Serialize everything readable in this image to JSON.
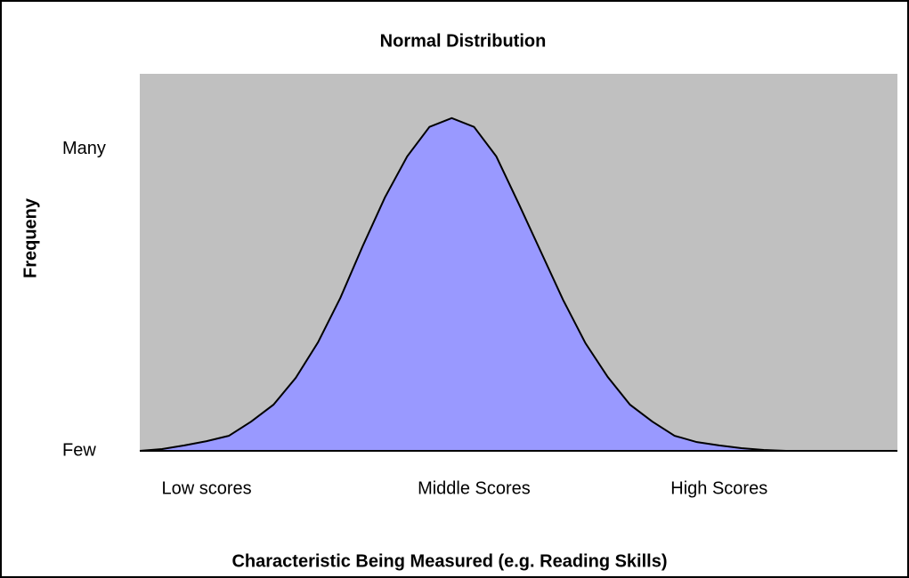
{
  "chart_data": {
    "type": "area",
    "title": "Normal Distribution",
    "x_label": "Characteristic Being Measured (e.g. Reading Skills)",
    "y_label": "Frequeny",
    "categories": [
      null,
      null,
      null,
      "Low scores",
      null,
      null,
      null,
      null,
      null,
      null,
      null,
      null,
      null,
      null,
      null,
      "Middle Scores",
      null,
      null,
      null,
      null,
      null,
      null,
      null,
      null,
      null,
      null,
      "High Scores",
      null,
      null,
      null,
      null,
      null,
      null,
      null,
      null
    ],
    "values": [
      0,
      0.6,
      1.8,
      3.2,
      5,
      9.7,
      15.3,
      24.2,
      36,
      50.7,
      67.8,
      84,
      97.6,
      107.4,
      110.3,
      107.4,
      97.6,
      82,
      66,
      50,
      35.7,
      24.5,
      15.3,
      9.7,
      5,
      2.9,
      1.8,
      0.9,
      0.3,
      0,
      0,
      0,
      0,
      0,
      0
    ],
    "color": "#9999ff",
    "background": "#c0c0c0",
    "ylim": [
      0,
      125
    ],
    "yticks": [
      {
        "value": 0,
        "label": "Few"
      },
      {
        "value": 100,
        "label": "Many"
      }
    ],
    "grid": false
  }
}
